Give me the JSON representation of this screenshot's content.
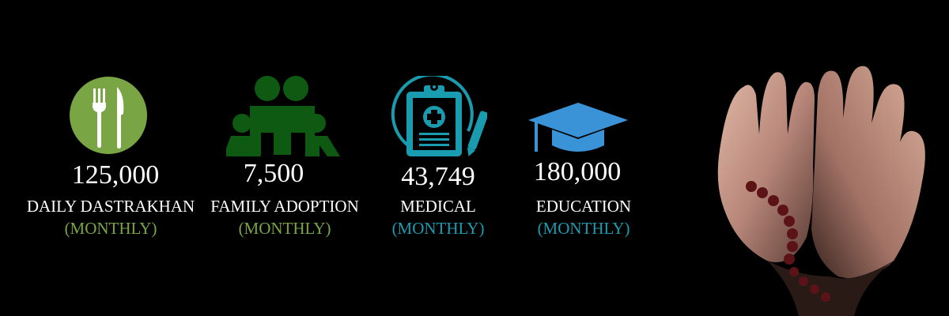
{
  "stats": [
    {
      "number": "125,000",
      "label": "DAILY DASTRAKHAN",
      "sub": "(MONTHLY)",
      "icon": "cutlery-icon",
      "color": "#79a544"
    },
    {
      "number": "7,500",
      "label": "FAMILY ADOPTION",
      "sub": "(MONTHLY)",
      "icon": "family-icon",
      "color": "#0f5a12"
    },
    {
      "number": "43,749",
      "label": "MEDICAL",
      "sub": "(MONTHLY)",
      "icon": "clipboard-icon",
      "color": "#1a9cb0"
    },
    {
      "number": "180,000",
      "label": "EDUCATION",
      "sub": "(MONTHLY)",
      "icon": "graduation-cap-icon",
      "color": "#3a93d6"
    }
  ],
  "colors": {
    "background": "#000000",
    "text": "#ffffff",
    "green": "#79a544",
    "dark_green": "#0f5a12",
    "teal": "#1a9cb0",
    "blue": "#3a93d6"
  },
  "decoration": {
    "image": "praying-hands-with-prayer-beads"
  }
}
